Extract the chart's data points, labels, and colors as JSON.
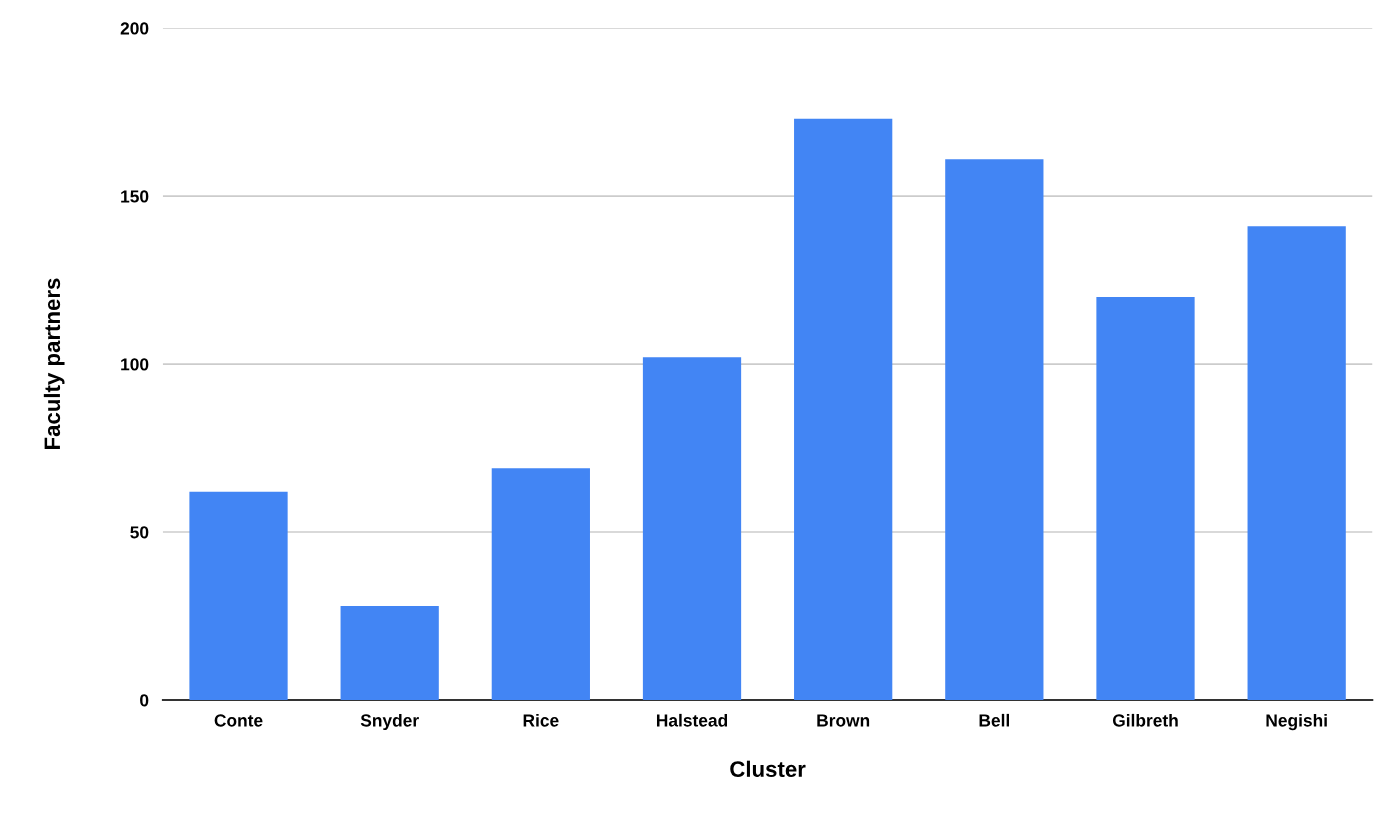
{
  "chart_data": {
    "type": "bar",
    "xlabel": "Cluster",
    "ylabel": "Faculty partners",
    "categories": [
      "Conte",
      "Snyder",
      "Rice",
      "Halstead",
      "Brown",
      "Bell",
      "Gilbreth",
      "Negishi"
    ],
    "values": [
      62,
      28,
      69,
      102,
      173,
      161,
      120,
      141
    ],
    "color": "#4285f4",
    "ylim": [
      0,
      200
    ],
    "yticks": [
      0,
      50,
      100,
      150,
      200
    ],
    "grid": "y",
    "legend": false
  }
}
